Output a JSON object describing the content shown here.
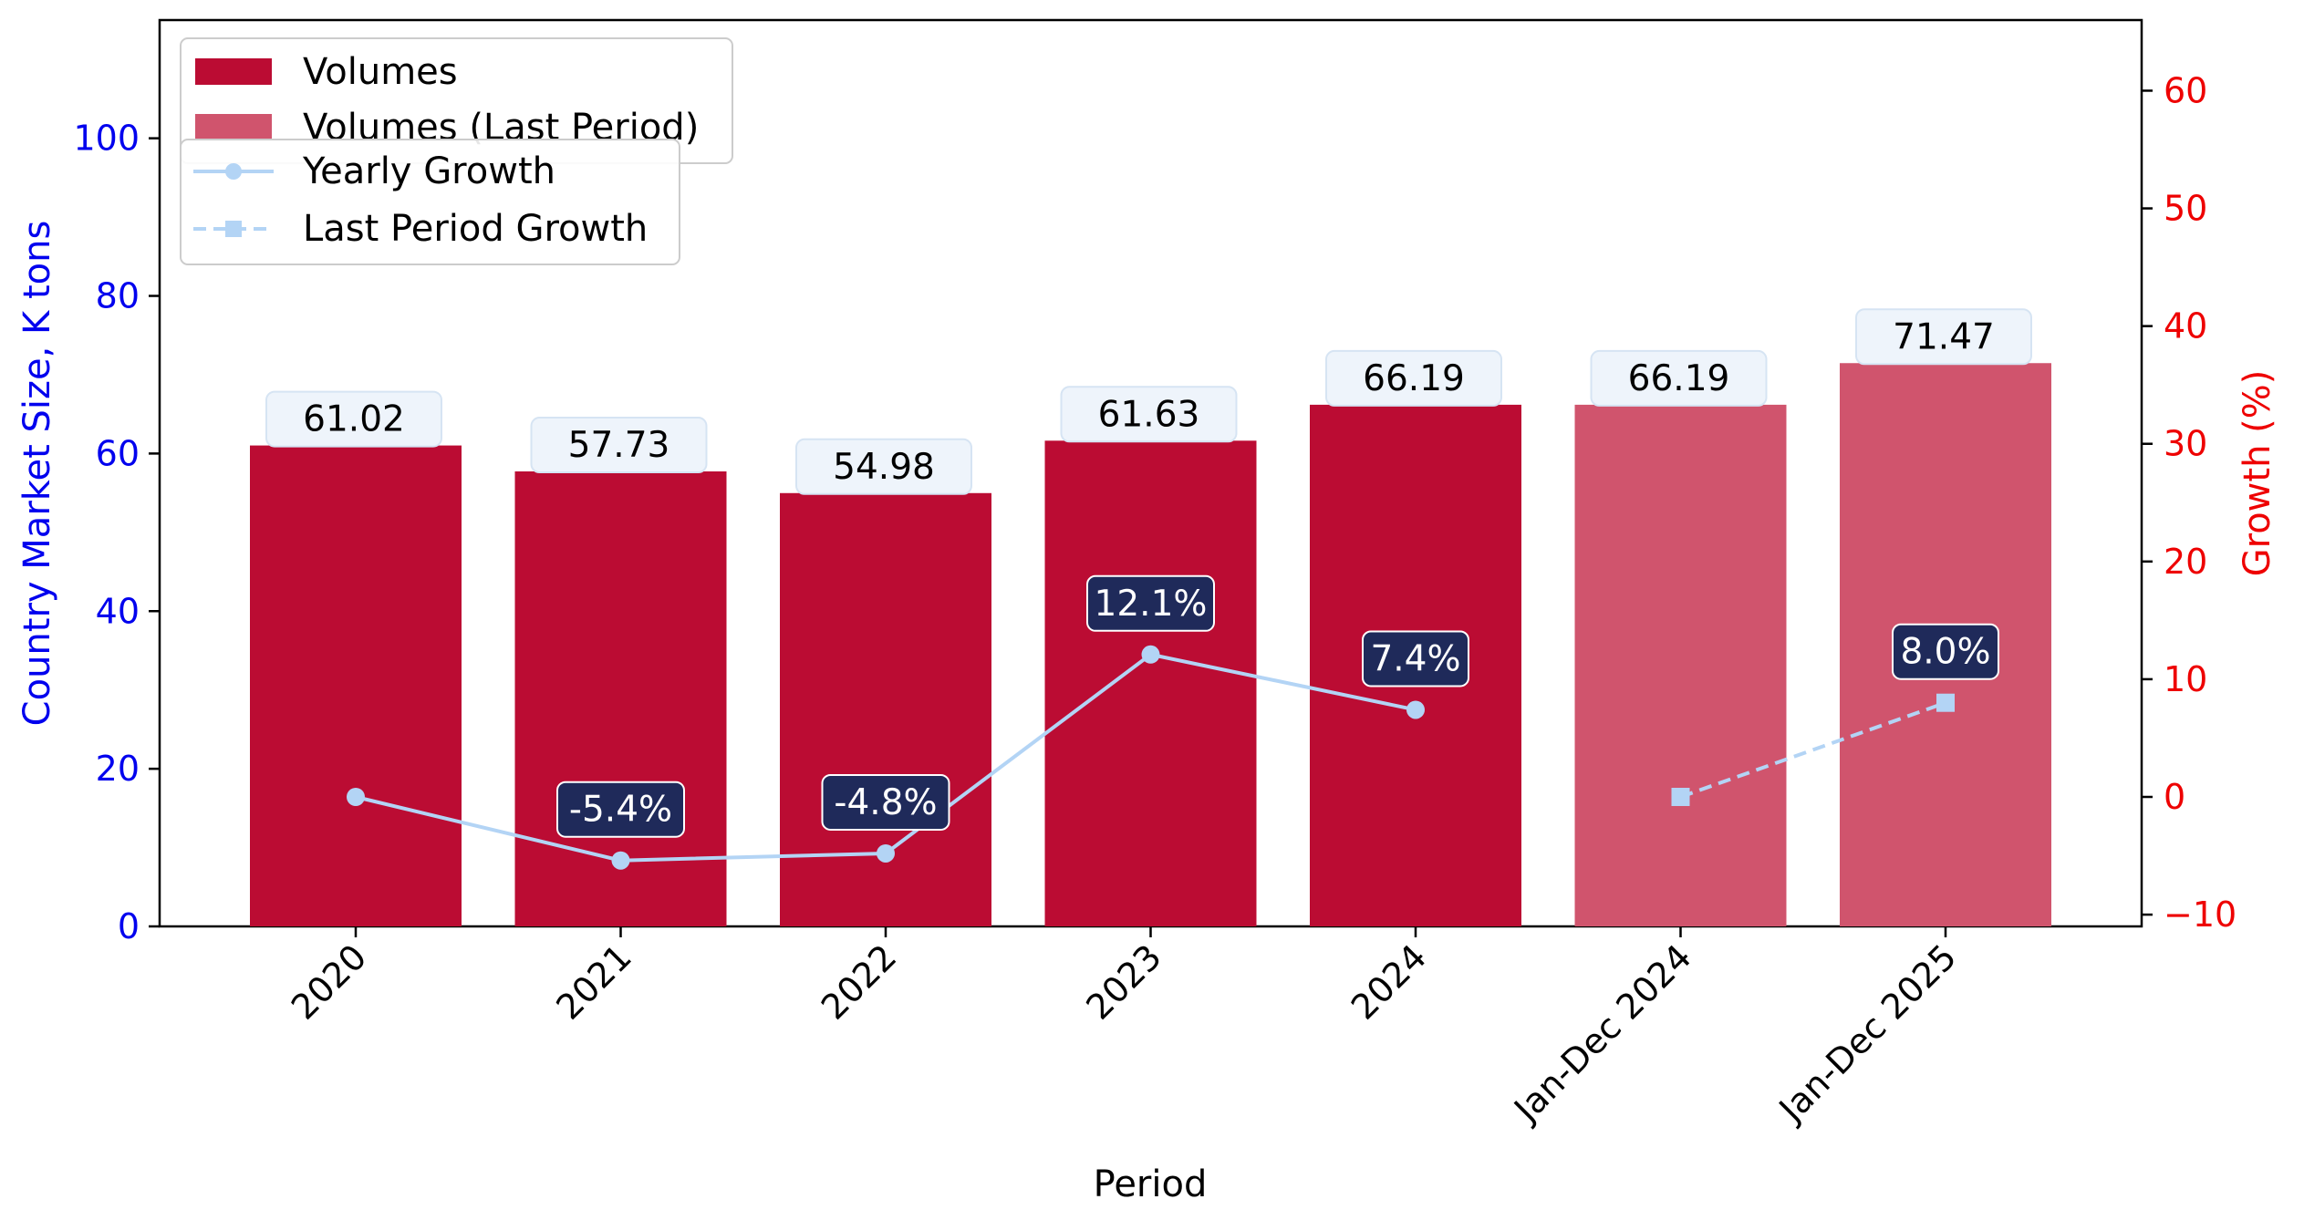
{
  "chart_data": {
    "type": "bar",
    "categories": [
      "2020",
      "2021",
      "2022",
      "2023",
      "2024",
      "Jan-Dec 2024",
      "Jan-Dec 2025"
    ],
    "values": [
      61.02,
      57.73,
      54.98,
      61.63,
      66.19,
      66.19,
      71.47
    ],
    "value_labels": [
      "61.02",
      "57.73",
      "54.98",
      "61.63",
      "66.19",
      "66.19",
      "71.47"
    ],
    "bar_series": [
      {
        "name": "Volumes",
        "indices": [
          0,
          1,
          2,
          3,
          4
        ],
        "color": "#bb0c33"
      },
      {
        "name": "Volumes (Last Period)",
        "indices": [
          5,
          6
        ],
        "color": "#d0546d"
      }
    ],
    "line_series": [
      {
        "name": "Yearly Growth",
        "indices": [
          0,
          1,
          2,
          3,
          4
        ],
        "values": [
          0,
          -5.4,
          -4.8,
          12.1,
          7.4
        ],
        "labels": [
          "",
          "-5.4%",
          "-4.8%",
          "12.1%",
          "7.4%"
        ],
        "color": "#b3d4f5",
        "style": "solid",
        "marker": "circle"
      },
      {
        "name": "Last Period Growth",
        "indices": [
          5,
          6
        ],
        "values": [
          0,
          8.0
        ],
        "labels": [
          "",
          "8.0%"
        ],
        "color": "#b3d4f5",
        "style": "dashed",
        "marker": "square"
      }
    ],
    "xlabel": "Period",
    "ylabel": "Country Market Size, K tons",
    "y2label": "Growth (%)",
    "ylim": [
      0,
      115
    ],
    "y2lim": [
      -11,
      66
    ],
    "yticks": [
      0,
      20,
      40,
      60,
      80,
      100
    ],
    "y2ticks": [
      -10,
      0,
      10,
      20,
      30,
      40,
      50,
      60
    ],
    "colors": {
      "left_axis": "#0000ee",
      "right_axis": "#ee0000",
      "label_box_fill": "#eef4fb",
      "growth_box_fill": "#1f2a5a"
    },
    "legend_position": "upper-left",
    "grid": false
  }
}
